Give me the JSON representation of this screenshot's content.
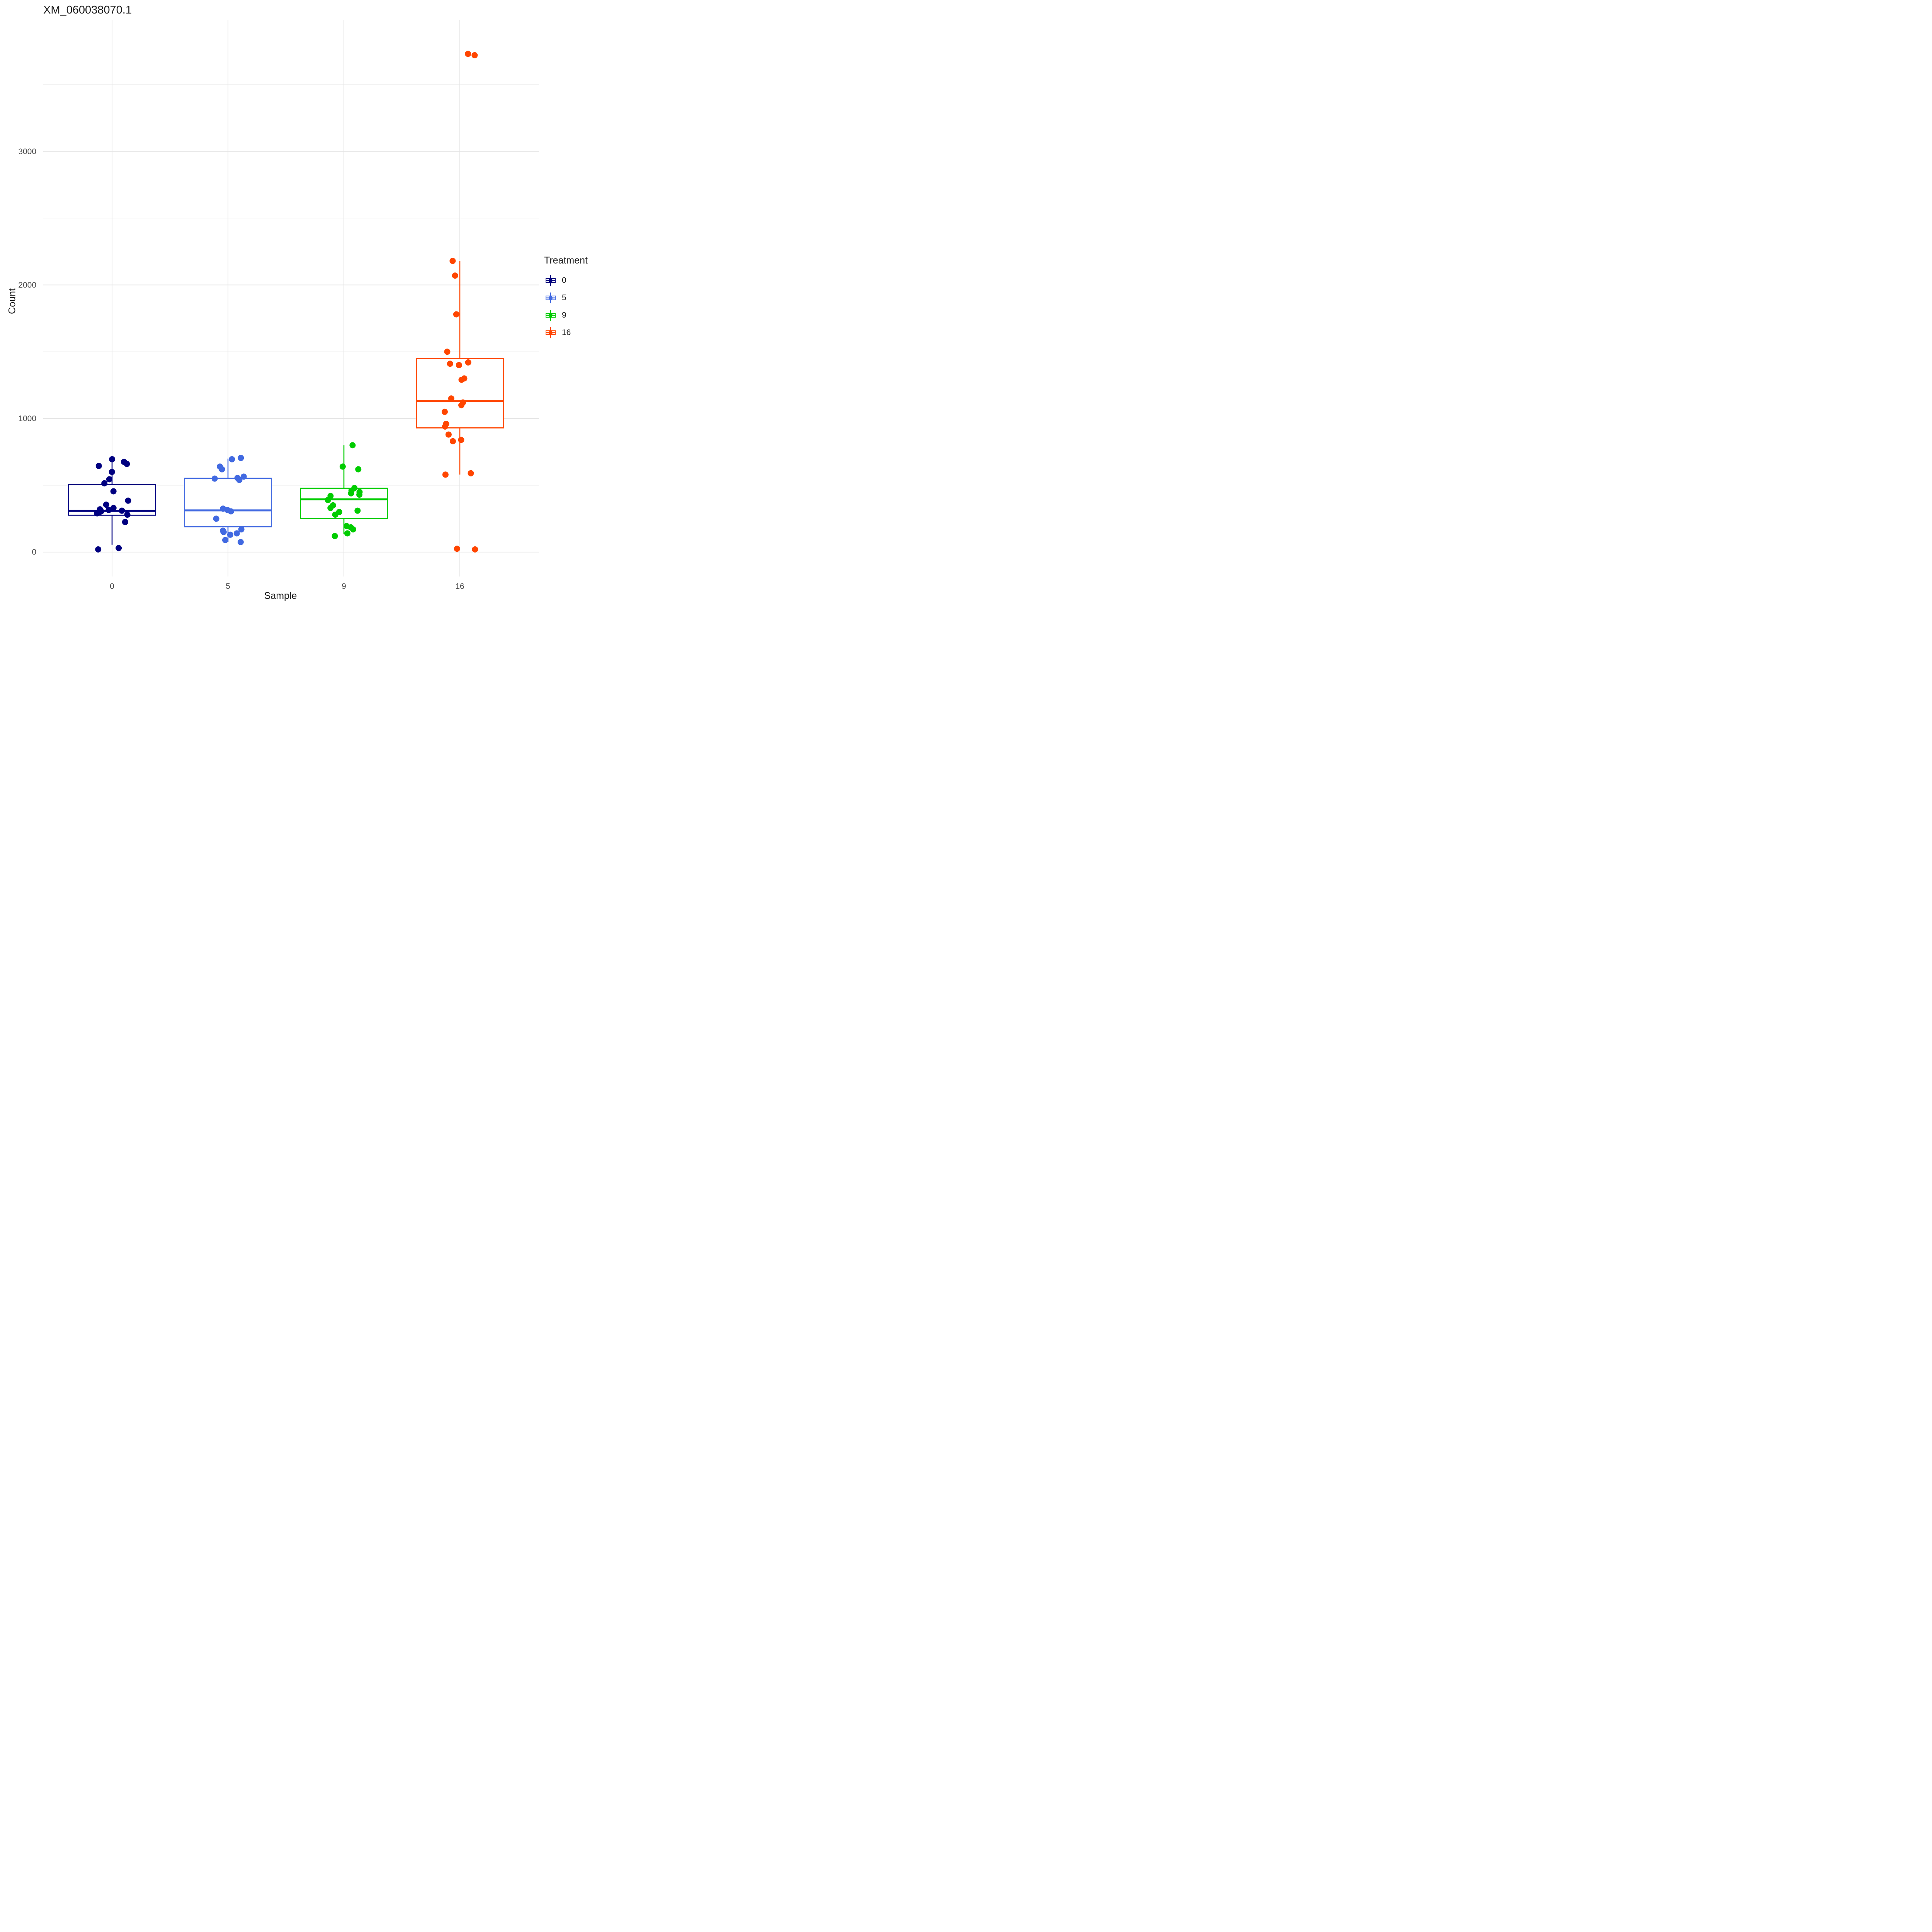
{
  "title": "XM_060038070.1",
  "axes": {
    "x_label": "Sample",
    "y_label": "Count",
    "x_categories": [
      "0",
      "5",
      "9",
      "16"
    ],
    "y_ticks": [
      0,
      1000,
      2000,
      3000
    ],
    "y_minor_gridlines": [
      500,
      1500,
      2500,
      3500
    ],
    "ylim": [
      -183,
      3983
    ]
  },
  "legend": {
    "title": "Treatment",
    "items": [
      {
        "label": "0",
        "color": "#000080"
      },
      {
        "label": "5",
        "color": "#4169E1"
      },
      {
        "label": "9",
        "color": "#00CC00"
      },
      {
        "label": "16",
        "color": "#FF4500"
      }
    ]
  },
  "chart_data": {
    "type": "boxplot",
    "title": "XM_060038070.1",
    "xlabel": "Sample",
    "ylabel": "Count",
    "categories": [
      "0",
      "5",
      "9",
      "16"
    ],
    "ylim": [
      -183,
      3983
    ],
    "grid": true,
    "legend_position": "right",
    "groups": [
      {
        "sample": "0",
        "treatment": "0",
        "color": "#000080",
        "box": {
          "q1": 276,
          "median": 308,
          "q3": 505,
          "whisker_low": 55,
          "whisker_high": 695
        },
        "points": [
          20,
          30,
          225,
          280,
          290,
          300,
          305,
          310,
          315,
          320,
          330,
          355,
          385,
          455,
          515,
          545,
          600,
          645,
          660,
          675,
          695
        ]
      },
      {
        "sample": "5",
        "treatment": "5",
        "color": "#4169E1",
        "box": {
          "q1": 190,
          "median": 312,
          "q3": 552,
          "whisker_low": 75,
          "whisker_high": 700
        },
        "points": [
          75,
          90,
          130,
          140,
          150,
          160,
          170,
          250,
          305,
          315,
          325,
          540,
          550,
          555,
          565,
          620,
          640,
          695,
          705
        ]
      },
      {
        "sample": "9",
        "treatment": "9",
        "color": "#00CC00",
        "box": {
          "q1": 252,
          "median": 395,
          "q3": 478,
          "whisker_low": 135,
          "whisker_high": 800
        },
        "points": [
          120,
          140,
          170,
          185,
          195,
          280,
          300,
          310,
          330,
          350,
          390,
          420,
          430,
          440,
          450,
          460,
          480,
          620,
          640,
          800
        ]
      },
      {
        "sample": "16",
        "treatment": "16",
        "color": "#FF4500",
        "box": {
          "q1": 930,
          "median": 1130,
          "q3": 1450,
          "whisker_low": 580,
          "whisker_high": 2180
        },
        "points": [
          20,
          25,
          580,
          590,
          830,
          840,
          880,
          940,
          960,
          1050,
          1100,
          1120,
          1150,
          1290,
          1300,
          1400,
          1410,
          1420,
          1500,
          1780,
          2070,
          2180,
          3720,
          3730
        ]
      }
    ]
  }
}
